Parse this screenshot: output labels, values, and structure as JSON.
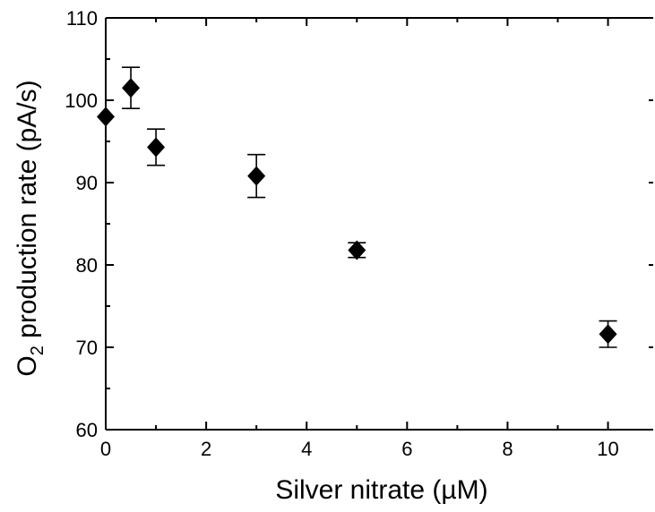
{
  "chart_data": {
    "type": "scatter",
    "xlabel": "Silver nitrate (µM)",
    "ylabel_main": "O",
    "ylabel_sub": "2",
    "ylabel_rest": " production rate (pA/s)",
    "xlim": [
      0,
      10.9
    ],
    "ylim": [
      60,
      110
    ],
    "x_ticks": [
      0,
      2,
      4,
      6,
      8,
      10
    ],
    "y_ticks": [
      60,
      70,
      80,
      90,
      100,
      110
    ],
    "grid": false,
    "legend": "none",
    "marker": "diamond",
    "color": "#000000",
    "series": [
      {
        "points": [
          {
            "x": 0,
            "y": 98.0,
            "err": 0
          },
          {
            "x": 0.5,
            "y": 101.5,
            "err": 2.5
          },
          {
            "x": 1,
            "y": 94.3,
            "err": 2.2
          },
          {
            "x": 3,
            "y": 90.8,
            "err": 2.6
          },
          {
            "x": 5,
            "y": 81.8,
            "err": 0.9
          },
          {
            "x": 10,
            "y": 71.6,
            "err": 1.6
          }
        ]
      }
    ]
  }
}
